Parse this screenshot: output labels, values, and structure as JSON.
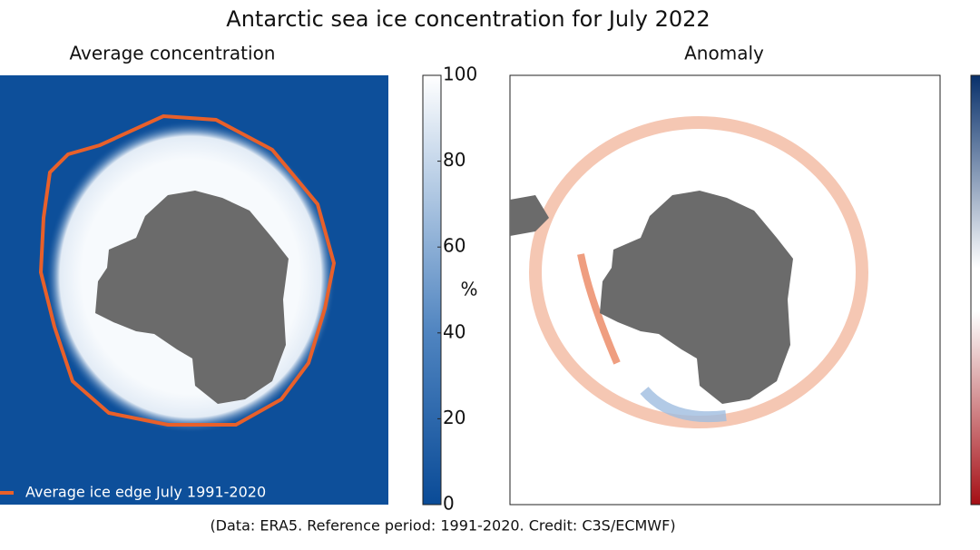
{
  "title": "Antarctic sea ice concentration for July 2022",
  "panels": [
    {
      "title": "Average concentration",
      "legend": "Average ice edge July 1991-2020"
    },
    {
      "title": "Anomaly"
    }
  ],
  "colorbar": {
    "lim": [
      0,
      100
    ],
    "ticks": [
      0,
      20,
      40,
      60,
      80,
      100
    ],
    "unit": "%"
  },
  "credit": "(Data: ERA5.  Reference period: 1991-2020.  Credit: C3S/ECMWF)"
}
